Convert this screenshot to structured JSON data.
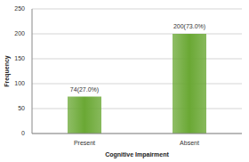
{
  "chart_data": {
    "type": "bar",
    "x_label": "Cognitive Impairment",
    "y_label": "Frequency",
    "categories": [
      "Present",
      "Absent"
    ],
    "values": [
      74,
      200
    ],
    "value_labels": [
      "74(27.0%)",
      "200(73.0%)"
    ],
    "data_labels": true,
    "color": "#6aa834",
    "ylim": [
      0,
      250
    ],
    "yticks": [
      0,
      50,
      100,
      150,
      200,
      250
    ],
    "grid": true
  }
}
